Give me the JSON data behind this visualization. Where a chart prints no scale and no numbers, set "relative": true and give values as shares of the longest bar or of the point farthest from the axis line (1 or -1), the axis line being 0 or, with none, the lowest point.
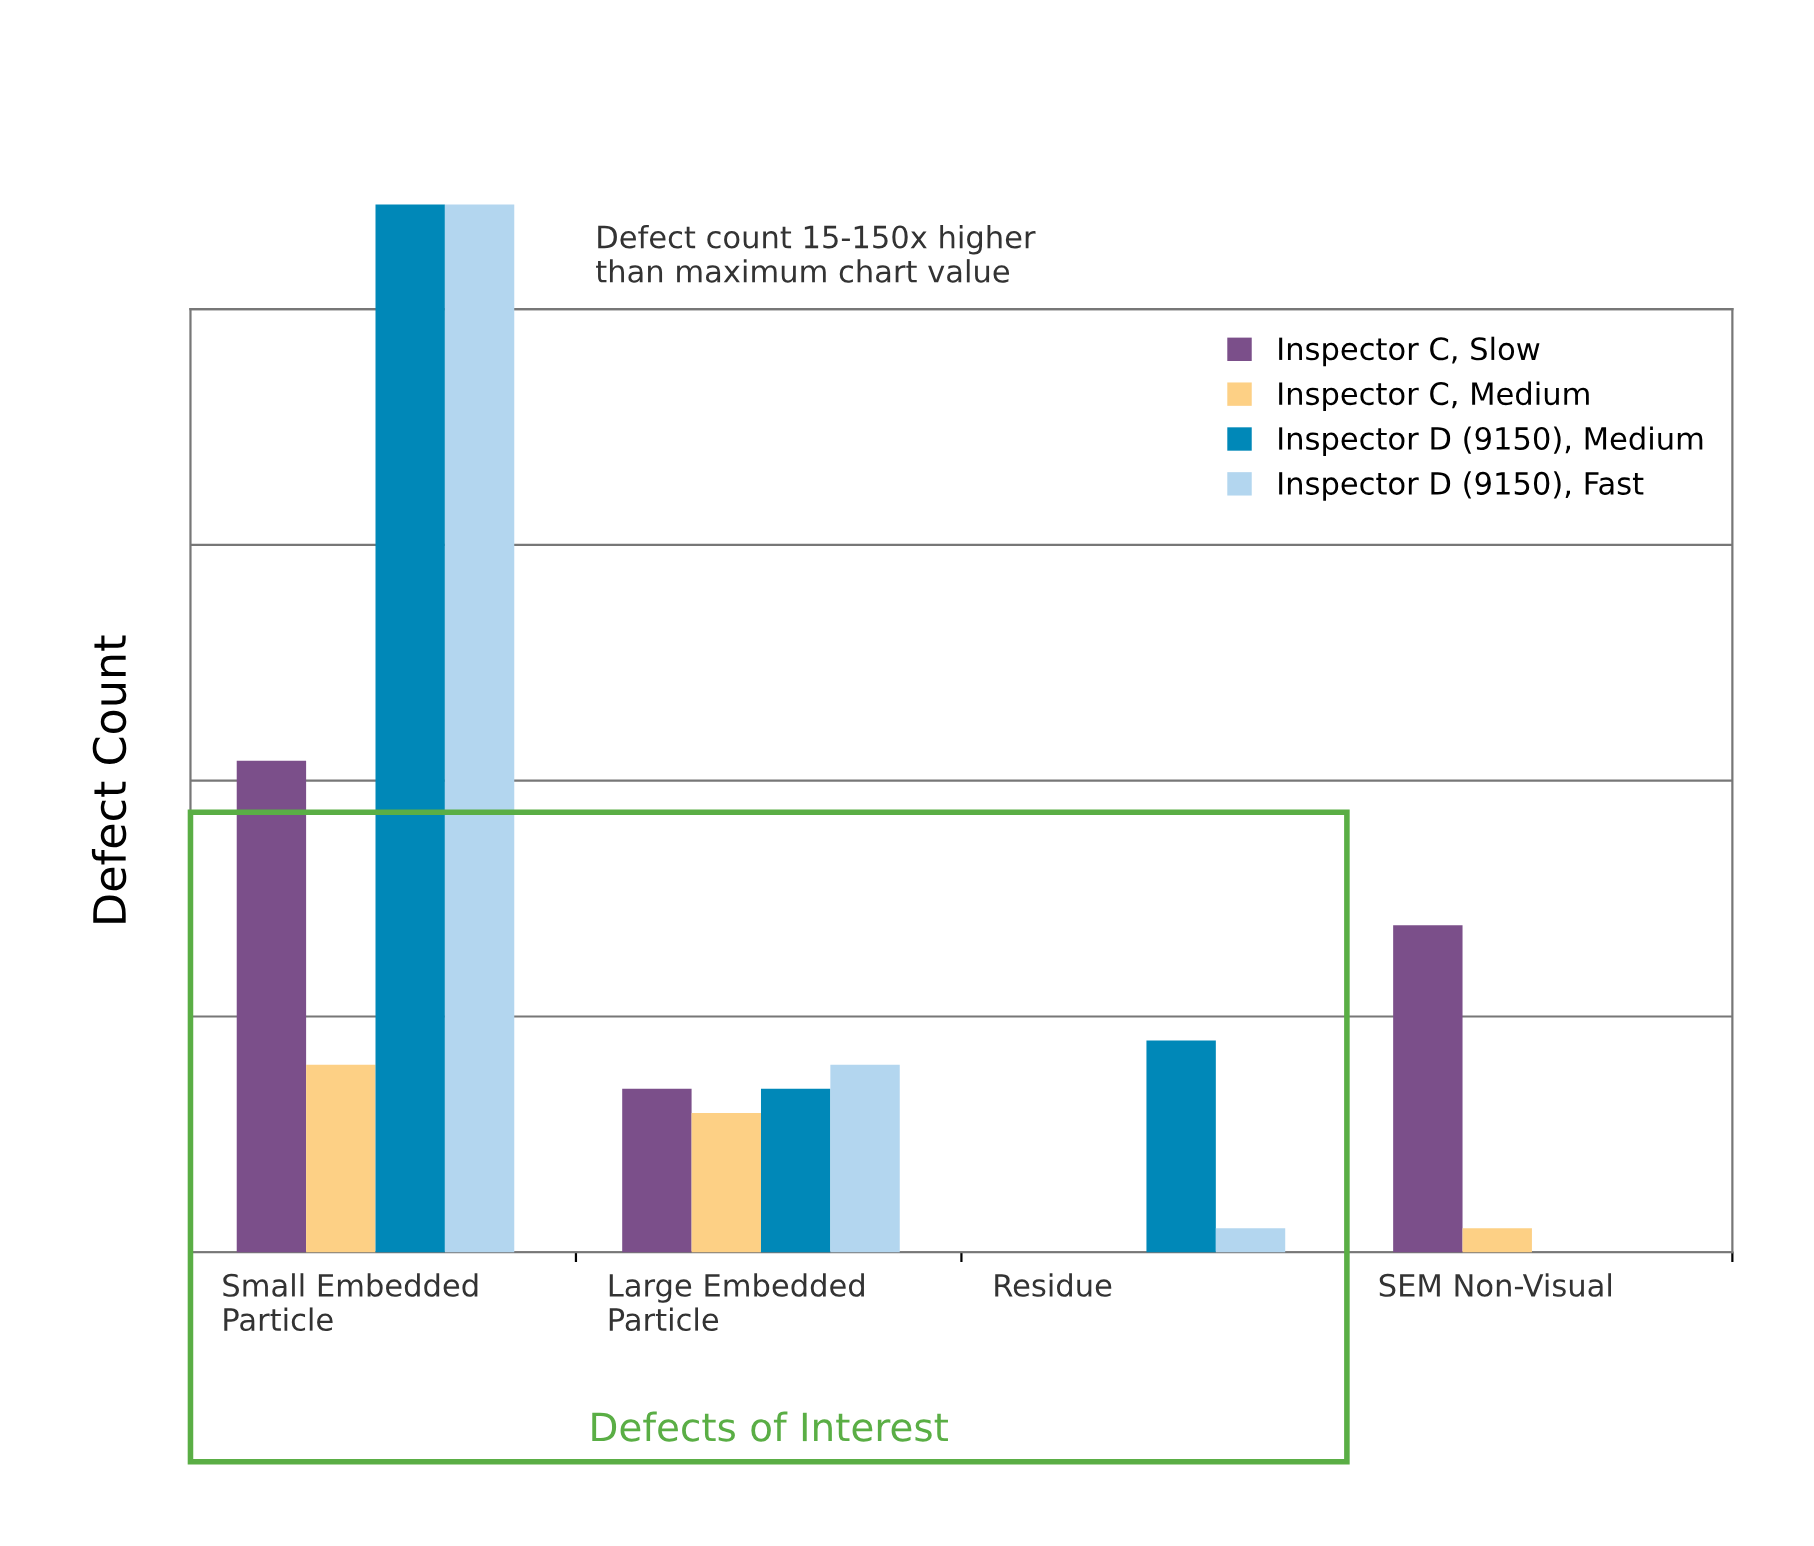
{
  "chart_data": {
    "type": "bar",
    "relative": true,
    "ylabel": "Defect Count",
    "categories": [
      "Small Embedded\nParticle",
      "Large Embedded\nParticle",
      "Residue",
      "SEM Non-Visual"
    ],
    "series": [
      {
        "name": "Inspector C, Slow",
        "color": "#7b4f8a",
        "values": [
          0.469,
          0.156,
          null,
          0.312
        ]
      },
      {
        "name": "Inspector C, Medium",
        "color": "#fdd085",
        "values": [
          0.179,
          0.133,
          null,
          0.023
        ]
      },
      {
        "name": "Inspector D (9150), Medium",
        "color": "#0088b8",
        "values": [
          1,
          0.156,
          0.202,
          null
        ]
      },
      {
        "name": "Inspector D (9150), Fast",
        "color": "#b3d6ef",
        "values": [
          1,
          0.179,
          0.023,
          null
        ]
      }
    ],
    "annotations": [
      "Defect count 15-150x higher\nthan maximum chart value",
      "Defects of Interest"
    ],
    "grid": "y",
    "legend": "top right"
  }
}
